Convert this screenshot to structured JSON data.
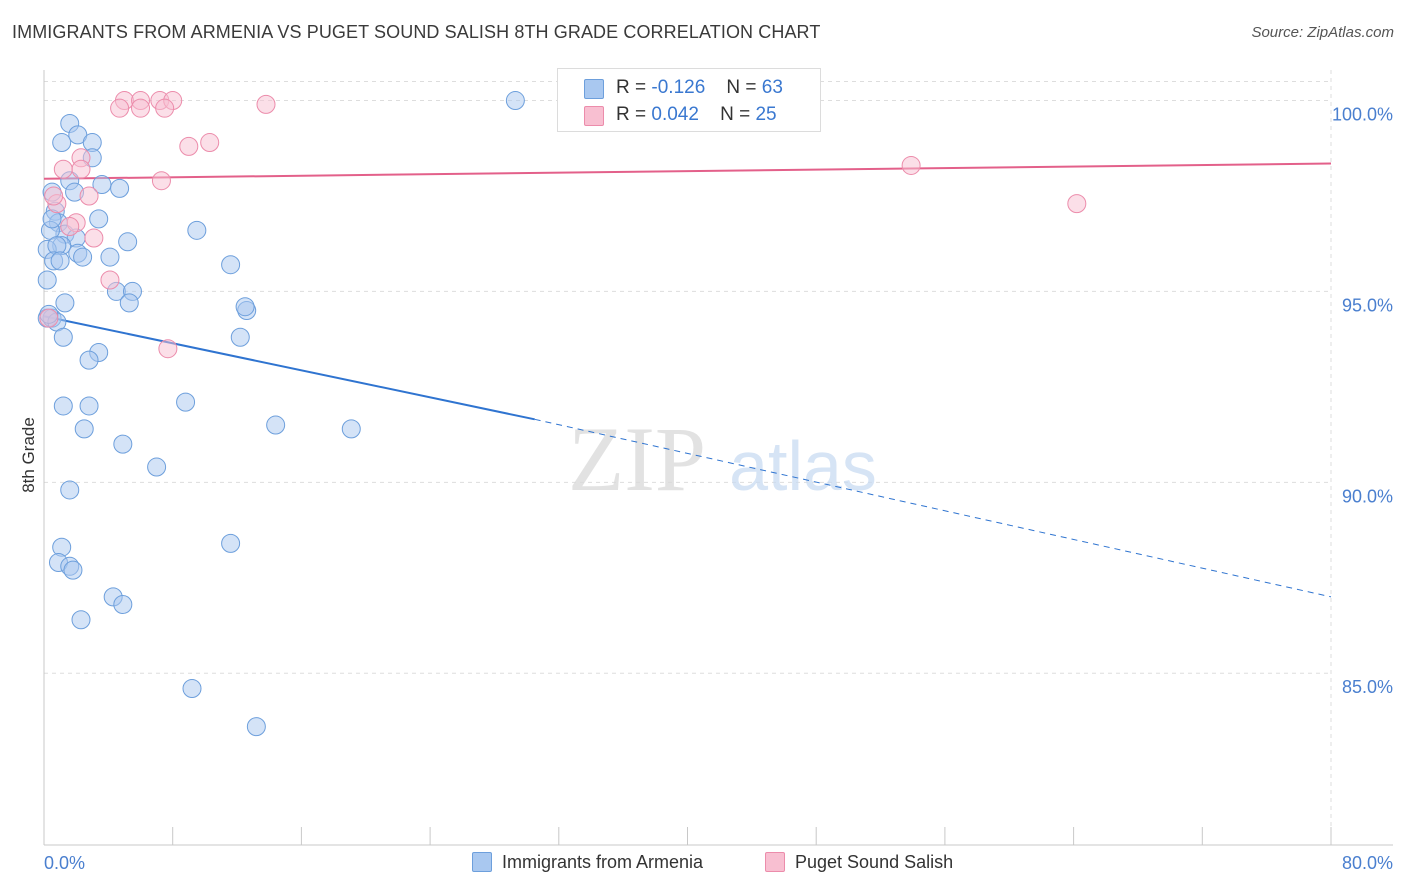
{
  "title": "IMMIGRANTS FROM ARMENIA VS PUGET SOUND SALISH 8TH GRADE CORRELATION CHART",
  "source": "Source: ZipAtlas.com",
  "watermark": {
    "zip": "ZIP",
    "atlas": "atlas"
  },
  "colors": {
    "blue_fill": "#a9c8f0",
    "blue_stroke": "#6d9fdc",
    "blue_line": "#2f74d0",
    "pink_fill": "#f8bfd1",
    "pink_stroke": "#ec8cab",
    "pink_line": "#e3608a",
    "grid": "#dddddd",
    "axis_text": "#4a7fcf"
  },
  "legend": {
    "r_label": "R =",
    "n_label": "N =",
    "series": [
      {
        "name": "Immigrants from Armenia",
        "r": "-0.126",
        "n": "63"
      },
      {
        "name": "Puget Sound Salish",
        "r": "0.042",
        "n": "25"
      }
    ]
  },
  "chart_data": {
    "type": "scatter",
    "title": "IMMIGRANTS FROM ARMENIA VS PUGET SOUND SALISH 8TH GRADE CORRELATION CHART",
    "xlabel": "",
    "ylabel": "8th Grade",
    "xlim": [
      0,
      80
    ],
    "ylim": [
      80.5,
      100.8
    ],
    "x_tick_labels": [
      "0.0%",
      "80.0%"
    ],
    "y_ticks": [
      85,
      90,
      95,
      100
    ],
    "y_tick_labels": [
      "85.0%",
      "90.0%",
      "95.0%",
      "100.0%"
    ],
    "legend_position": "bottom",
    "series": [
      {
        "name": "Immigrants from Armenia",
        "color": "blue",
        "points": [
          [
            29.3,
            100.0
          ],
          [
            1.6,
            99.4
          ],
          [
            1.1,
            98.9
          ],
          [
            2.1,
            99.1
          ],
          [
            3.0,
            98.9
          ],
          [
            3.0,
            98.5
          ],
          [
            1.6,
            97.9
          ],
          [
            3.6,
            97.8
          ],
          [
            4.7,
            97.7
          ],
          [
            1.9,
            97.6
          ],
          [
            0.5,
            97.6
          ],
          [
            0.7,
            97.1
          ],
          [
            0.9,
            96.8
          ],
          [
            3.4,
            96.9
          ],
          [
            9.5,
            96.6
          ],
          [
            1.3,
            96.5
          ],
          [
            0.4,
            96.6
          ],
          [
            2.0,
            96.4
          ],
          [
            5.2,
            96.3
          ],
          [
            1.1,
            96.2
          ],
          [
            0.2,
            96.1
          ],
          [
            0.8,
            96.2
          ],
          [
            2.1,
            96.0
          ],
          [
            2.4,
            95.9
          ],
          [
            4.1,
            95.9
          ],
          [
            11.6,
            95.7
          ],
          [
            0.6,
            95.8
          ],
          [
            1.0,
            95.8
          ],
          [
            0.2,
            95.3
          ],
          [
            4.5,
            95.0
          ],
          [
            5.5,
            95.0
          ],
          [
            5.3,
            94.7
          ],
          [
            1.3,
            94.7
          ],
          [
            12.6,
            94.5
          ],
          [
            12.5,
            94.6
          ],
          [
            0.2,
            94.3
          ],
          [
            0.5,
            94.3
          ],
          [
            0.8,
            94.2
          ],
          [
            1.2,
            93.8
          ],
          [
            12.2,
            93.8
          ],
          [
            3.4,
            93.4
          ],
          [
            2.8,
            93.2
          ],
          [
            8.8,
            92.1
          ],
          [
            1.2,
            92.0
          ],
          [
            2.8,
            92.0
          ],
          [
            14.4,
            91.5
          ],
          [
            19.1,
            91.4
          ],
          [
            2.5,
            91.4
          ],
          [
            4.9,
            91.0
          ],
          [
            7.0,
            90.4
          ],
          [
            1.6,
            89.8
          ],
          [
            11.6,
            88.4
          ],
          [
            1.1,
            88.3
          ],
          [
            0.9,
            87.9
          ],
          [
            1.6,
            87.8
          ],
          [
            1.8,
            87.7
          ],
          [
            4.3,
            87.0
          ],
          [
            4.9,
            86.8
          ],
          [
            2.3,
            86.4
          ],
          [
            9.2,
            84.6
          ],
          [
            13.2,
            83.6
          ],
          [
            0.3,
            94.4
          ],
          [
            0.5,
            96.9
          ]
        ],
        "trend": {
          "x0": 0,
          "y0": 94.35,
          "x1": 30.5,
          "y1": 91.65,
          "dash_x1": 80,
          "dash_y1": 87.0
        }
      },
      {
        "name": "Puget Sound Salish",
        "color": "pink",
        "points": [
          [
            5.0,
            100.0
          ],
          [
            6.0,
            100.0
          ],
          [
            7.2,
            100.0
          ],
          [
            8.0,
            100.0
          ],
          [
            6.0,
            99.8
          ],
          [
            7.5,
            99.8
          ],
          [
            4.7,
            99.8
          ],
          [
            13.8,
            99.9
          ],
          [
            9.0,
            98.8
          ],
          [
            10.3,
            98.9
          ],
          [
            2.3,
            98.5
          ],
          [
            1.2,
            98.2
          ],
          [
            2.3,
            98.2
          ],
          [
            7.3,
            97.9
          ],
          [
            2.8,
            97.5
          ],
          [
            0.8,
            97.3
          ],
          [
            2.0,
            96.8
          ],
          [
            1.6,
            96.7
          ],
          [
            3.1,
            96.4
          ],
          [
            4.1,
            95.3
          ],
          [
            7.7,
            93.5
          ],
          [
            53.9,
            98.3
          ],
          [
            64.2,
            97.3
          ],
          [
            0.3,
            94.3
          ],
          [
            0.6,
            97.5
          ]
        ],
        "trend": {
          "x0": 0,
          "y0": 97.95,
          "x1": 80,
          "y1": 98.35
        }
      }
    ]
  }
}
